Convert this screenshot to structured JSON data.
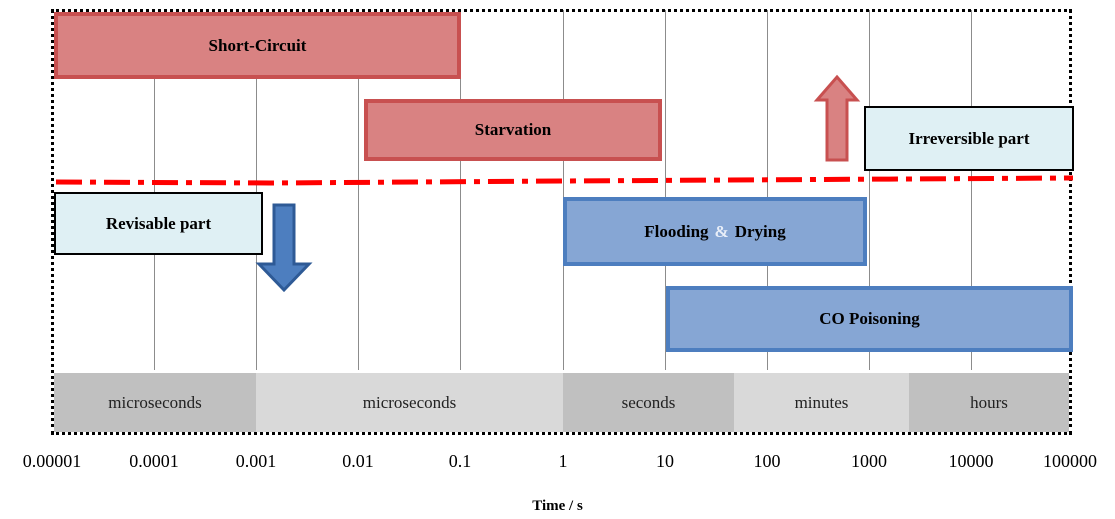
{
  "bars": {
    "short_circuit": "Short-Circuit",
    "starvation": "Starvation",
    "flooding": "Flooding",
    "amp": "&",
    "drying": "Drying",
    "co_poisoning": "CO Poisoning"
  },
  "callouts": {
    "irreversible": "Irreversible part",
    "revisable": "Revisable part"
  },
  "bands": [
    "microseconds",
    "microseconds",
    "seconds",
    "minutes",
    "hours"
  ],
  "ticks": [
    "0.00001",
    "0.0001",
    "0.001",
    "0.01",
    "0.1",
    "1",
    "10",
    "100",
    "1000",
    "10000",
    "100000"
  ],
  "axis": {
    "xlabel": "Time / s"
  },
  "colors": {
    "irreversible_fill": "#d98282",
    "irreversible_border": "#c85050",
    "reversible_fill": "#86a6d4",
    "reversible_border": "#4d7ebf",
    "divider": "#ff0000",
    "callout_fill": "#dff0f4"
  }
}
